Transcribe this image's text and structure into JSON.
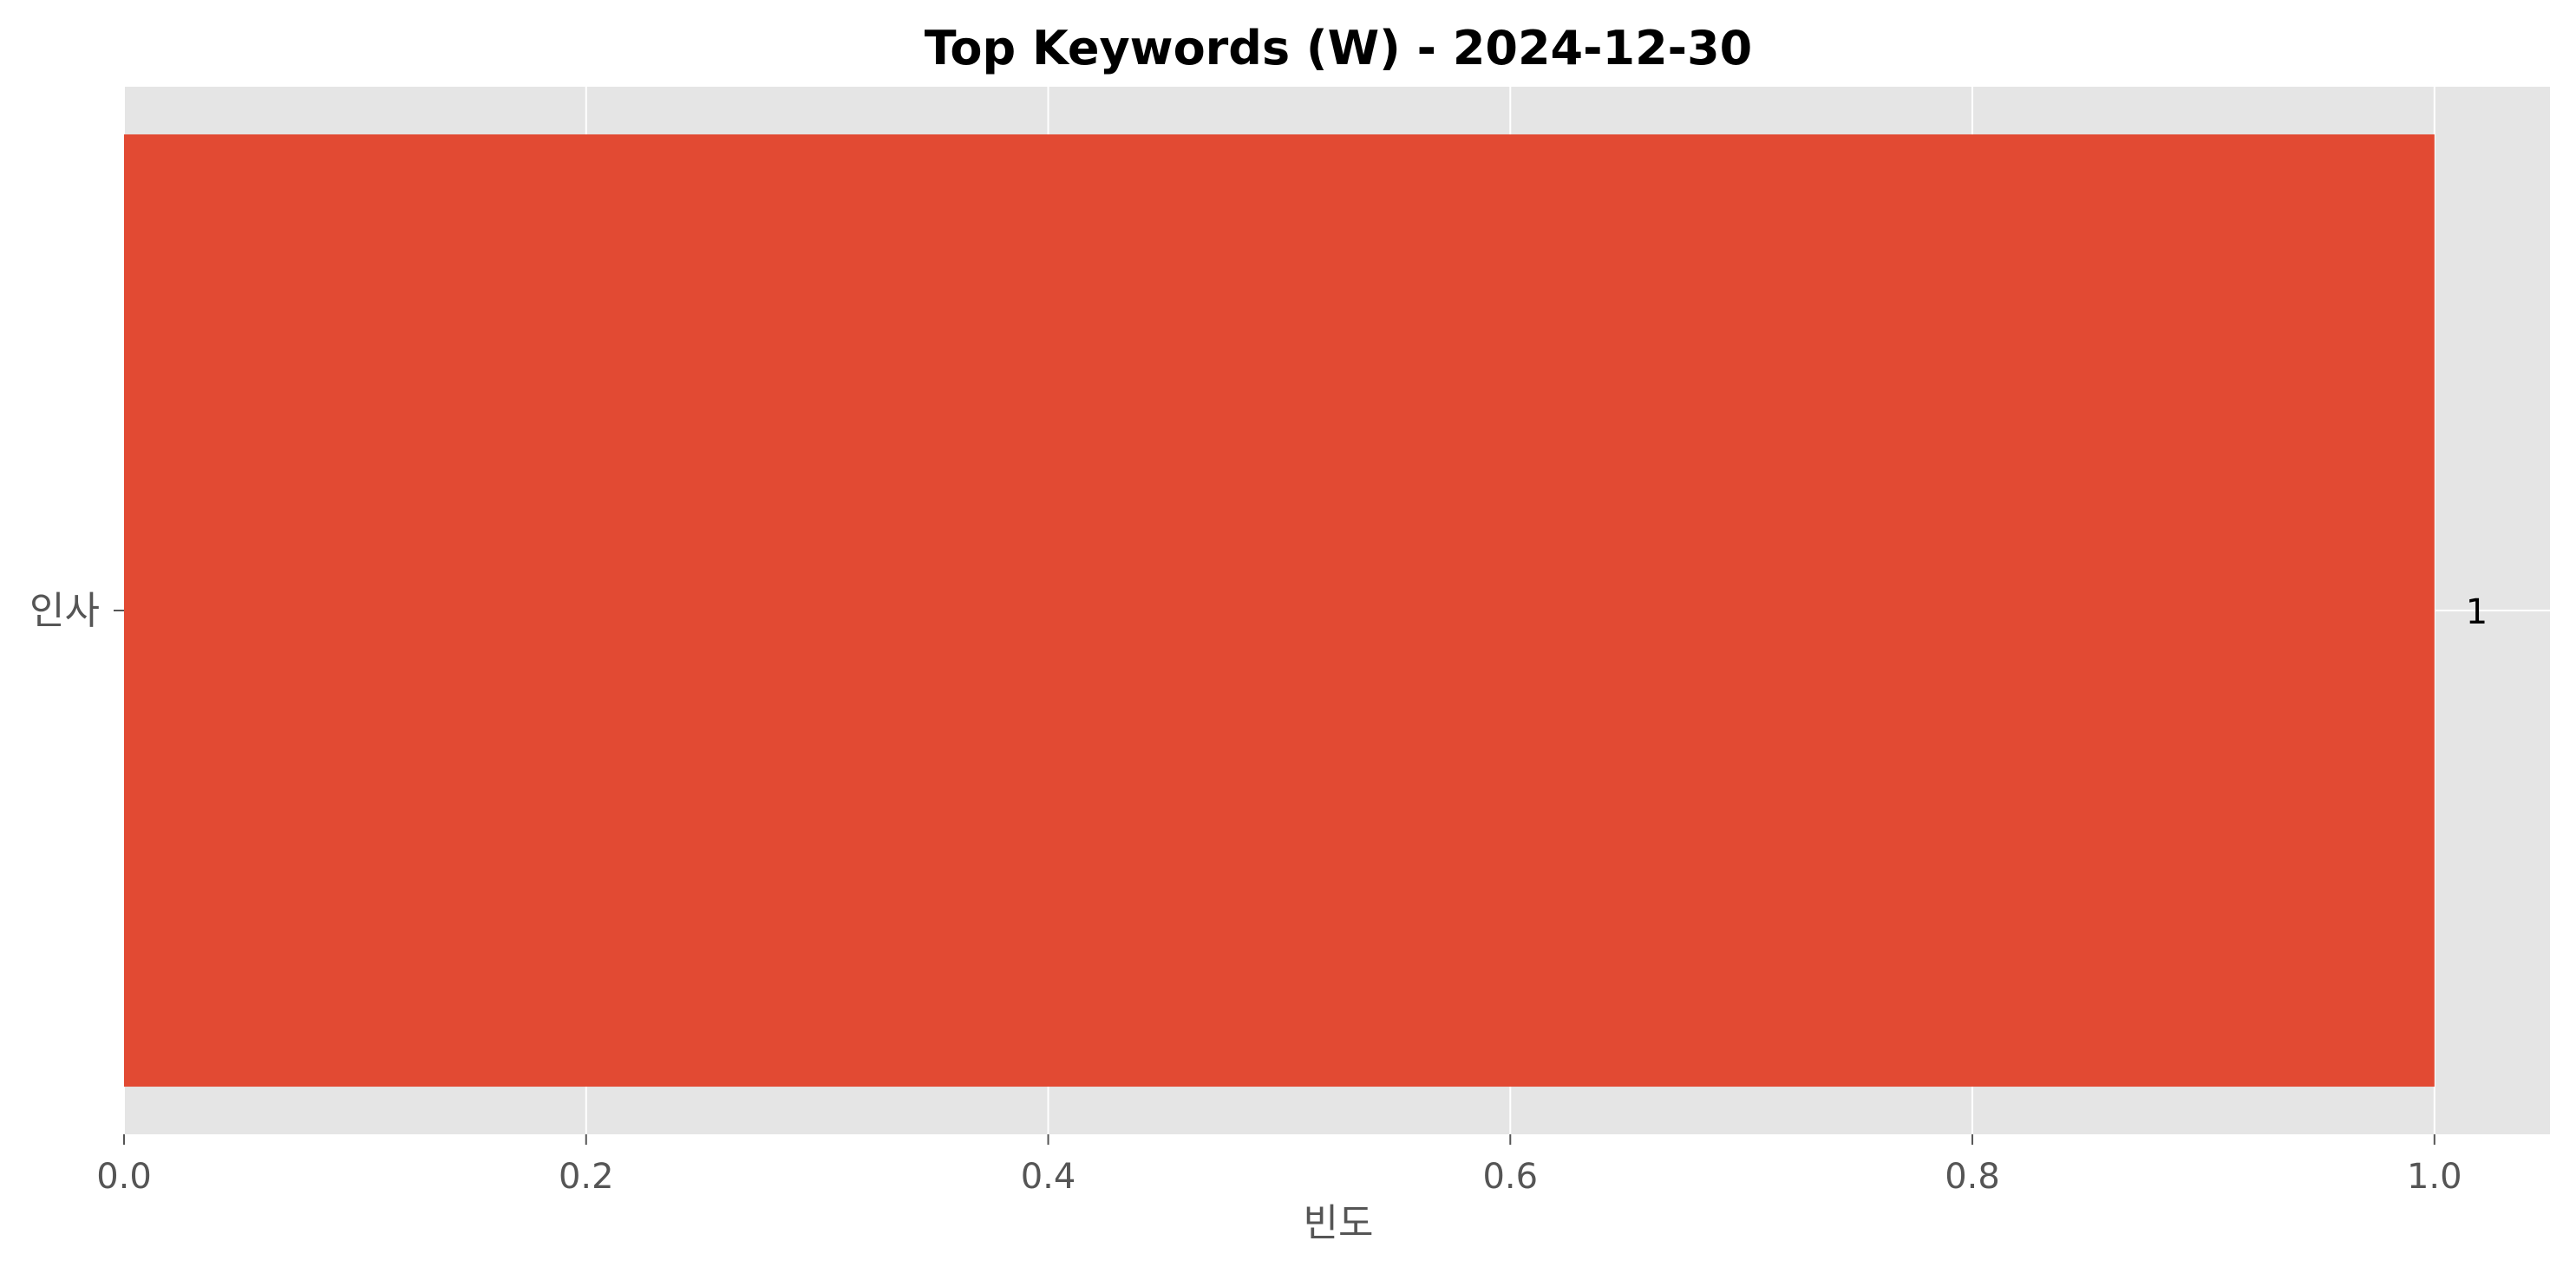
{
  "chart_data": {
    "type": "bar",
    "orientation": "horizontal",
    "title": "Top Keywords (W) - 2024-12-30",
    "xlabel": "빈도",
    "ylabel": "",
    "categories": [
      "인사"
    ],
    "values": [
      1
    ],
    "value_labels": [
      "1"
    ],
    "xlim": [
      0,
      1.05
    ],
    "xticks": [
      0.0,
      0.2,
      0.4,
      0.6,
      0.8,
      1.0
    ],
    "xtick_labels": [
      "0.0",
      "0.2",
      "0.4",
      "0.6",
      "0.8",
      "1.0"
    ],
    "grid": true,
    "legend": "none",
    "colors": {
      "bar": "#E24A33",
      "plot_background": "#E5E5E5",
      "grid": "#FFFFFF",
      "text": "#000000",
      "tick_text": "#555555"
    }
  }
}
